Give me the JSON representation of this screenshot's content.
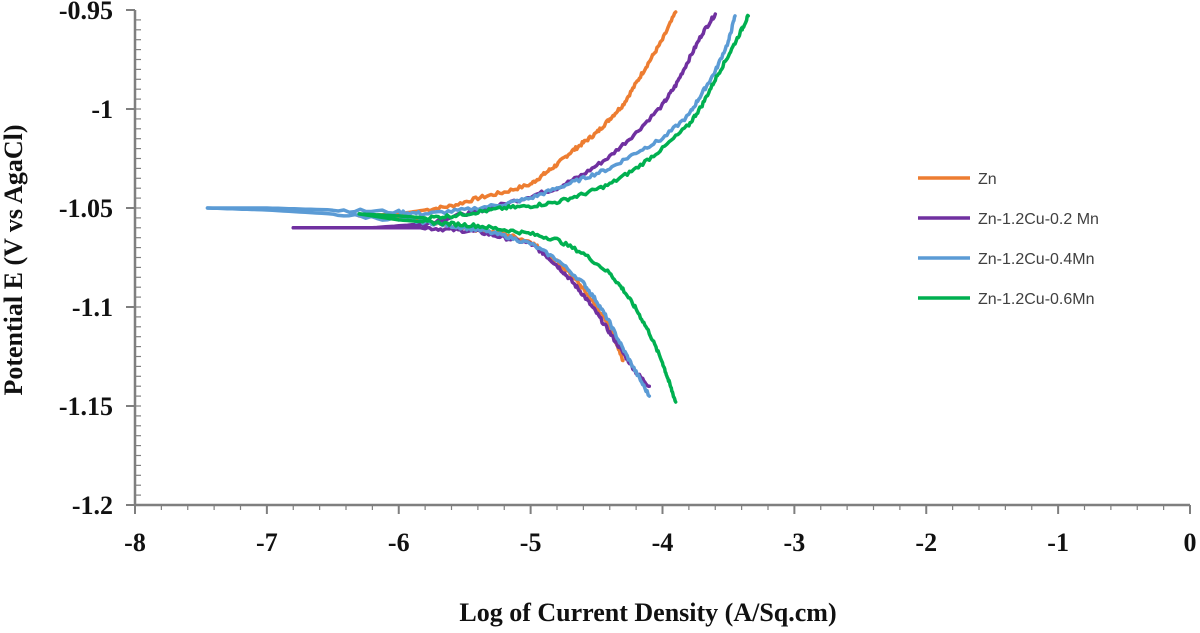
{
  "chart_data": {
    "type": "line",
    "title": "",
    "xlabel": "Log of Current Density (A/Sq.cm)",
    "ylabel": "Potential  E (V vs AgaCl)",
    "xlim": [
      -8,
      0
    ],
    "ylim": [
      -1.2,
      -0.95
    ],
    "x_ticks": [
      -8,
      -7,
      -6,
      -5,
      -4,
      -3,
      -2,
      -1,
      0
    ],
    "x_tick_labels": [
      "-8",
      "-7",
      "-6",
      "-5",
      "-4",
      "-3",
      "-2",
      "-1",
      "0"
    ],
    "y_ticks": [
      -0.95,
      -1,
      -1.05,
      -1.1,
      -1.15,
      -1.2
    ],
    "y_tick_labels": [
      "-0.95",
      "-1",
      "-1.05",
      "-1.1",
      "-1.15",
      "-1.2"
    ],
    "grid": false,
    "legend_position": "right",
    "series": [
      {
        "name": "Zn",
        "color": "#ED7D31",
        "anodic": [
          [
            -6.3,
            -1.054
          ],
          [
            -6.0,
            -1.053
          ],
          [
            -5.8,
            -1.051
          ],
          [
            -5.6,
            -1.049
          ],
          [
            -5.4,
            -1.045
          ],
          [
            -5.2,
            -1.042
          ],
          [
            -5.0,
            -1.038
          ],
          [
            -4.9,
            -1.033
          ],
          [
            -4.8,
            -1.028
          ],
          [
            -4.7,
            -1.022
          ],
          [
            -4.6,
            -1.017
          ],
          [
            -4.5,
            -1.012
          ],
          [
            -4.4,
            -1.005
          ],
          [
            -4.3,
            -0.998
          ],
          [
            -4.2,
            -0.987
          ],
          [
            -4.1,
            -0.976
          ],
          [
            -4.0,
            -0.965
          ],
          [
            -3.9,
            -0.951
          ]
        ],
        "cathodic": [
          [
            -6.3,
            -1.054
          ],
          [
            -6.0,
            -1.055
          ],
          [
            -5.8,
            -1.057
          ],
          [
            -5.6,
            -1.059
          ],
          [
            -5.4,
            -1.061
          ],
          [
            -5.2,
            -1.063
          ],
          [
            -5.0,
            -1.067
          ],
          [
            -4.9,
            -1.072
          ],
          [
            -4.8,
            -1.077
          ],
          [
            -4.7,
            -1.083
          ],
          [
            -4.6,
            -1.091
          ],
          [
            -4.5,
            -1.1
          ],
          [
            -4.4,
            -1.11
          ],
          [
            -4.35,
            -1.118
          ],
          [
            -4.3,
            -1.127
          ]
        ]
      },
      {
        "name": "Zn-1.2Cu-0.2 Mn",
        "color": "#7030A0",
        "anodic": [
          [
            -6.8,
            -1.06
          ],
          [
            -6.2,
            -1.06
          ],
          [
            -5.8,
            -1.058
          ],
          [
            -5.5,
            -1.053
          ],
          [
            -5.3,
            -1.05
          ],
          [
            -5.0,
            -1.044
          ],
          [
            -4.8,
            -1.04
          ],
          [
            -4.6,
            -1.033
          ],
          [
            -4.4,
            -1.024
          ],
          [
            -4.2,
            -1.012
          ],
          [
            -4.0,
            -0.998
          ],
          [
            -3.9,
            -0.988
          ],
          [
            -3.8,
            -0.975
          ],
          [
            -3.7,
            -0.962
          ],
          [
            -3.6,
            -0.952
          ]
        ],
        "cathodic": [
          [
            -6.8,
            -1.06
          ],
          [
            -6.2,
            -1.06
          ],
          [
            -5.8,
            -1.06
          ],
          [
            -5.6,
            -1.061
          ],
          [
            -5.4,
            -1.062
          ],
          [
            -5.2,
            -1.065
          ],
          [
            -5.0,
            -1.068
          ],
          [
            -4.9,
            -1.073
          ],
          [
            -4.8,
            -1.079
          ],
          [
            -4.7,
            -1.086
          ],
          [
            -4.6,
            -1.094
          ],
          [
            -4.5,
            -1.103
          ],
          [
            -4.4,
            -1.113
          ],
          [
            -4.3,
            -1.123
          ],
          [
            -4.2,
            -1.133
          ],
          [
            -4.1,
            -1.14
          ]
        ]
      },
      {
        "name": "Zn-1.2Cu-0.4Mn",
        "color": "#5B9BD5",
        "anodic": [
          [
            -7.45,
            -1.05
          ],
          [
            -7.0,
            -1.05
          ],
          [
            -6.5,
            -1.051
          ],
          [
            -6.0,
            -1.052
          ],
          [
            -5.8,
            -1.053
          ],
          [
            -5.5,
            -1.051
          ],
          [
            -5.2,
            -1.048
          ],
          [
            -5.0,
            -1.045
          ],
          [
            -4.8,
            -1.04
          ],
          [
            -4.6,
            -1.035
          ],
          [
            -4.4,
            -1.03
          ],
          [
            -4.2,
            -1.022
          ],
          [
            -4.0,
            -1.015
          ],
          [
            -3.8,
            -1.003
          ],
          [
            -3.7,
            -0.992
          ],
          [
            -3.6,
            -0.981
          ],
          [
            -3.5,
            -0.966
          ],
          [
            -3.45,
            -0.953
          ]
        ],
        "cathodic": [
          [
            -7.45,
            -1.05
          ],
          [
            -7.0,
            -1.051
          ],
          [
            -6.5,
            -1.053
          ],
          [
            -6.0,
            -1.056
          ],
          [
            -5.8,
            -1.057
          ],
          [
            -5.6,
            -1.059
          ],
          [
            -5.4,
            -1.061
          ],
          [
            -5.2,
            -1.064
          ],
          [
            -5.0,
            -1.068
          ],
          [
            -4.8,
            -1.076
          ],
          [
            -4.6,
            -1.088
          ],
          [
            -4.5,
            -1.097
          ],
          [
            -4.4,
            -1.108
          ],
          [
            -4.3,
            -1.121
          ],
          [
            -4.2,
            -1.133
          ],
          [
            -4.1,
            -1.145
          ]
        ]
      },
      {
        "name": "Zn-1.2Cu-0.6Mn",
        "color": "#00B050",
        "anodic": [
          [
            -6.3,
            -1.053
          ],
          [
            -6.0,
            -1.054
          ],
          [
            -5.8,
            -1.055
          ],
          [
            -5.6,
            -1.054
          ],
          [
            -5.4,
            -1.052
          ],
          [
            -5.2,
            -1.05
          ],
          [
            -5.0,
            -1.049
          ],
          [
            -4.8,
            -1.047
          ],
          [
            -4.6,
            -1.043
          ],
          [
            -4.4,
            -1.038
          ],
          [
            -4.2,
            -1.03
          ],
          [
            -4.0,
            -1.02
          ],
          [
            -3.8,
            -1.008
          ],
          [
            -3.7,
            -0.998
          ],
          [
            -3.6,
            -0.985
          ],
          [
            -3.5,
            -0.973
          ],
          [
            -3.4,
            -0.96
          ],
          [
            -3.35,
            -0.953
          ]
        ],
        "cathodic": [
          [
            -6.3,
            -1.053
          ],
          [
            -6.0,
            -1.056
          ],
          [
            -5.8,
            -1.057
          ],
          [
            -5.6,
            -1.058
          ],
          [
            -5.4,
            -1.059
          ],
          [
            -5.2,
            -1.061
          ],
          [
            -5.0,
            -1.063
          ],
          [
            -4.8,
            -1.066
          ],
          [
            -4.6,
            -1.073
          ],
          [
            -4.4,
            -1.083
          ],
          [
            -4.3,
            -1.091
          ],
          [
            -4.2,
            -1.101
          ],
          [
            -4.1,
            -1.113
          ],
          [
            -4.0,
            -1.128
          ],
          [
            -3.95,
            -1.138
          ],
          [
            -3.9,
            -1.148
          ]
        ]
      }
    ]
  }
}
